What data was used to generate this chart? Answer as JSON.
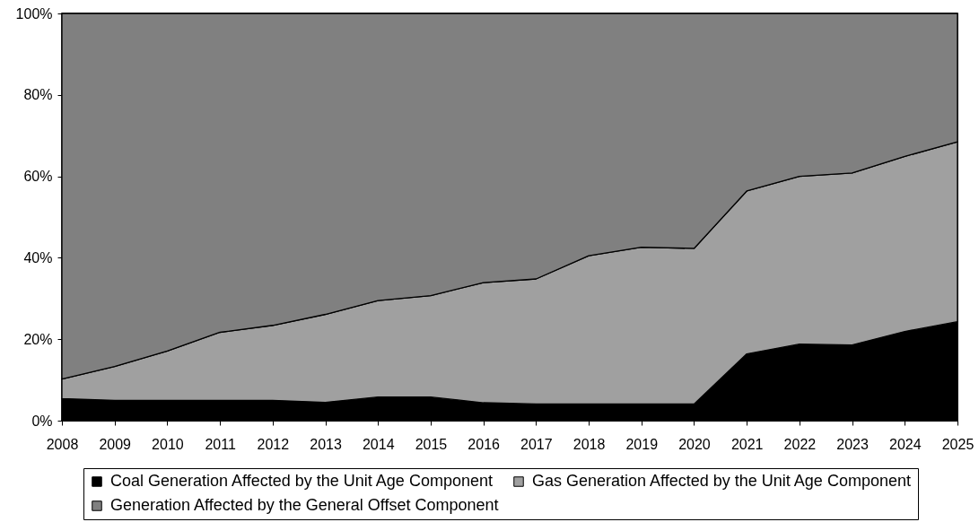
{
  "chart_data": {
    "type": "area",
    "stacked": true,
    "categories": [
      "2008",
      "2009",
      "2010",
      "2011",
      "2012",
      "2013",
      "2014",
      "2015",
      "2016",
      "2017",
      "2018",
      "2019",
      "2020",
      "2021",
      "2022",
      "2023",
      "2024",
      "2025"
    ],
    "series": [
      {
        "name": "Coal Generation Affected by the Unit Age Component",
        "color": "#000000",
        "values": [
          5.4,
          5.0,
          5.0,
          5.0,
          5.0,
          4.5,
          5.8,
          5.8,
          4.4,
          4.1,
          4.1,
          4.1,
          4.1,
          16.4,
          18.8,
          18.6,
          21.9,
          24.3
        ]
      },
      {
        "name": "Gas Generation Affected by the Unit Age Component",
        "color": "#a0a0a0",
        "values": [
          4.8,
          8.3,
          12.1,
          16.7,
          18.4,
          21.6,
          23.7,
          24.9,
          29.5,
          30.7,
          36.4,
          38.5,
          38.2,
          40.0,
          41.2,
          42.2,
          43.0,
          44.2
        ]
      },
      {
        "name": "Generation Affected by the General Offset Component",
        "color": "#808080",
        "values": [
          89.8,
          86.7,
          82.9,
          78.3,
          76.6,
          73.9,
          70.5,
          69.3,
          66.1,
          65.2,
          59.5,
          57.4,
          57.7,
          43.6,
          40.0,
          39.2,
          35.1,
          31.5
        ]
      }
    ],
    "ylim": [
      0,
      100
    ],
    "yticks": [
      {
        "value": 0,
        "label": "0%"
      },
      {
        "value": 20,
        "label": "20%"
      },
      {
        "value": 40,
        "label": "40%"
      },
      {
        "value": 60,
        "label": "60%"
      },
      {
        "value": 80,
        "label": "80%"
      },
      {
        "value": 100,
        "label": "100%"
      }
    ],
    "grid": false,
    "legend": "bottom"
  }
}
